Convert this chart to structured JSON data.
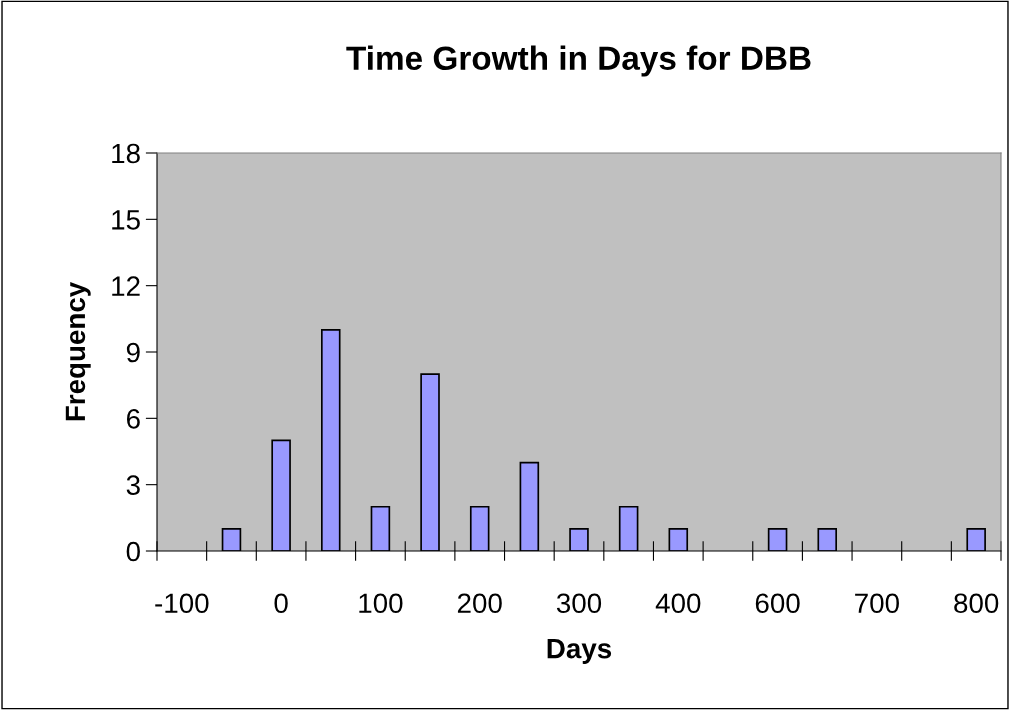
{
  "chart_data": {
    "type": "bar",
    "title": "Time Growth in Days for DBB",
    "xlabel": "Days",
    "ylabel": "Frequency",
    "categories": [
      "-100",
      null,
      "0",
      null,
      "100",
      null,
      "200",
      null,
      "300",
      null,
      "400",
      null,
      "600",
      null,
      "700",
      null,
      "800"
    ],
    "values": [
      0,
      1,
      5,
      10,
      2,
      8,
      2,
      4,
      1,
      2,
      1,
      0,
      1,
      1,
      0,
      0,
      1
    ],
    "color": "#9999ff",
    "ylim": [
      0,
      18
    ],
    "yticks": [
      0,
      3,
      6,
      9,
      12,
      15,
      18
    ],
    "grid": false,
    "legend": false
  }
}
